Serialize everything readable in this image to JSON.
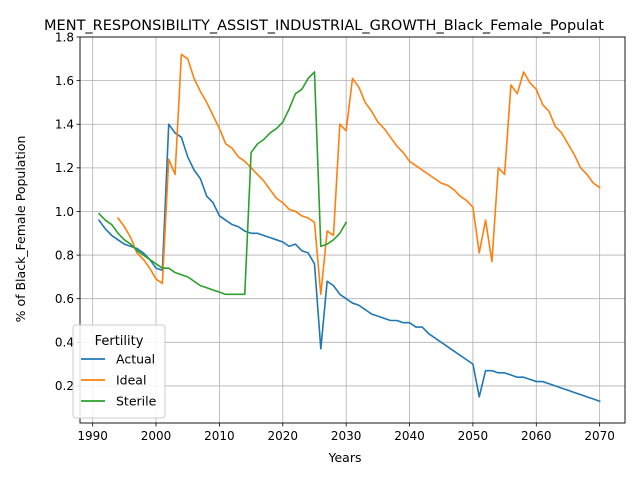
{
  "chart_data": {
    "type": "line",
    "title": "MENT_RESPONSIBILITY_ASSIST_INDUSTRIAL_GROWTH_Black_Female_Populat",
    "xlabel": "Years",
    "ylabel": "% of Black_Female Population",
    "xlim": [
      1988,
      2074
    ],
    "ylim": [
      0.03,
      1.8
    ],
    "xticks": [
      1990,
      2000,
      2010,
      2020,
      2030,
      2040,
      2050,
      2060,
      2070
    ],
    "yticks": [
      0.2,
      0.4,
      0.6,
      0.8,
      1.0,
      1.2,
      1.4,
      1.6,
      1.8
    ],
    "grid": true,
    "legend": {
      "title": "Fertility",
      "placement": "lower-left"
    },
    "series": [
      {
        "name": "Actual",
        "color": "#1f77b4",
        "x": [
          1991,
          1992,
          1993,
          1994,
          1995,
          1996,
          1997,
          1998,
          1999,
          2000,
          2001,
          2002,
          2003,
          2004,
          2005,
          2006,
          2007,
          2008,
          2009,
          2010,
          2011,
          2012,
          2013,
          2014,
          2015,
          2016,
          2017,
          2018,
          2019,
          2020,
          2021,
          2022,
          2023,
          2024,
          2025,
          2026,
          2027,
          2028,
          2029,
          2030,
          2031,
          2032,
          2033,
          2034,
          2035,
          2036,
          2037,
          2038,
          2039,
          2040,
          2041,
          2042,
          2043,
          2044,
          2045,
          2046,
          2047,
          2048,
          2049,
          2050,
          2051,
          2052,
          2053,
          2054,
          2055,
          2056,
          2057,
          2058,
          2059,
          2060,
          2061,
          2062,
          2063,
          2064,
          2065,
          2066,
          2067,
          2068,
          2069,
          2070
        ],
        "values": [
          0.96,
          0.92,
          0.89,
          0.87,
          0.85,
          0.84,
          0.83,
          0.81,
          0.78,
          0.74,
          0.73,
          1.4,
          1.36,
          1.34,
          1.25,
          1.19,
          1.15,
          1.07,
          1.04,
          0.98,
          0.96,
          0.94,
          0.93,
          0.91,
          0.9,
          0.9,
          0.89,
          0.88,
          0.87,
          0.86,
          0.84,
          0.85,
          0.82,
          0.81,
          0.76,
          0.37,
          0.68,
          0.66,
          0.62,
          0.6,
          0.58,
          0.57,
          0.55,
          0.53,
          0.52,
          0.51,
          0.5,
          0.5,
          0.49,
          0.49,
          0.47,
          0.47,
          0.44,
          0.42,
          0.4,
          0.38,
          0.36,
          0.34,
          0.32,
          0.3,
          0.15,
          0.27,
          0.27,
          0.26,
          0.26,
          0.25,
          0.24,
          0.24,
          0.23,
          0.22,
          0.22,
          0.21,
          0.2,
          0.19,
          0.18,
          0.17,
          0.16,
          0.15,
          0.14,
          0.13
        ]
      },
      {
        "name": "Ideal",
        "color": "#ff7f0e",
        "x": [
          1994,
          1995,
          1996,
          1997,
          1998,
          1999,
          2000,
          2001,
          2002,
          2003,
          2004,
          2005,
          2006,
          2007,
          2008,
          2009,
          2010,
          2011,
          2012,
          2013,
          2014,
          2015,
          2016,
          2017,
          2018,
          2019,
          2020,
          2021,
          2022,
          2023,
          2024,
          2025,
          2026,
          2027,
          2028,
          2029,
          2030,
          2031,
          2032,
          2033,
          2034,
          2035,
          2036,
          2037,
          2038,
          2039,
          2040,
          2041,
          2042,
          2043,
          2044,
          2045,
          2046,
          2047,
          2048,
          2049,
          2050,
          2051,
          2052,
          2053,
          2054,
          2055,
          2056,
          2057,
          2058,
          2059,
          2060,
          2061,
          2062,
          2063,
          2064,
          2065,
          2066,
          2067,
          2068,
          2069,
          2070
        ],
        "values": [
          0.97,
          0.93,
          0.88,
          0.81,
          0.78,
          0.74,
          0.69,
          0.67,
          1.24,
          1.17,
          1.72,
          1.7,
          1.61,
          1.55,
          1.5,
          1.44,
          1.38,
          1.31,
          1.29,
          1.25,
          1.23,
          1.2,
          1.17,
          1.14,
          1.1,
          1.06,
          1.04,
          1.01,
          1.0,
          0.98,
          0.97,
          0.95,
          0.62,
          0.91,
          0.89,
          1.4,
          1.37,
          1.61,
          1.57,
          1.5,
          1.46,
          1.41,
          1.38,
          1.34,
          1.3,
          1.27,
          1.23,
          1.21,
          1.19,
          1.17,
          1.15,
          1.13,
          1.12,
          1.1,
          1.07,
          1.05,
          1.02,
          0.81,
          0.96,
          0.77,
          1.2,
          1.17,
          1.58,
          1.54,
          1.64,
          1.59,
          1.56,
          1.49,
          1.46,
          1.39,
          1.36,
          1.31,
          1.26,
          1.2,
          1.17,
          1.13,
          1.11
        ]
      },
      {
        "name": "Sterile",
        "color": "#2ca02c",
        "x": [
          1991,
          1992,
          1993,
          1994,
          1995,
          1996,
          1997,
          1998,
          1999,
          2000,
          2001,
          2002,
          2003,
          2004,
          2005,
          2006,
          2007,
          2008,
          2009,
          2010,
          2011,
          2012,
          2013,
          2014,
          2015,
          2016,
          2017,
          2018,
          2019,
          2020,
          2021,
          2022,
          2023,
          2024,
          2025,
          2026,
          2027,
          2028,
          2029,
          2030
        ],
        "values": [
          0.99,
          0.96,
          0.94,
          0.9,
          0.87,
          0.85,
          0.82,
          0.8,
          0.78,
          0.76,
          0.74,
          0.74,
          0.72,
          0.71,
          0.7,
          0.68,
          0.66,
          0.65,
          0.64,
          0.63,
          0.62,
          0.62,
          0.62,
          0.62,
          1.27,
          1.31,
          1.33,
          1.36,
          1.38,
          1.41,
          1.47,
          1.54,
          1.56,
          1.61,
          1.64,
          0.84,
          0.85,
          0.87,
          0.9,
          0.95
        ]
      }
    ]
  }
}
